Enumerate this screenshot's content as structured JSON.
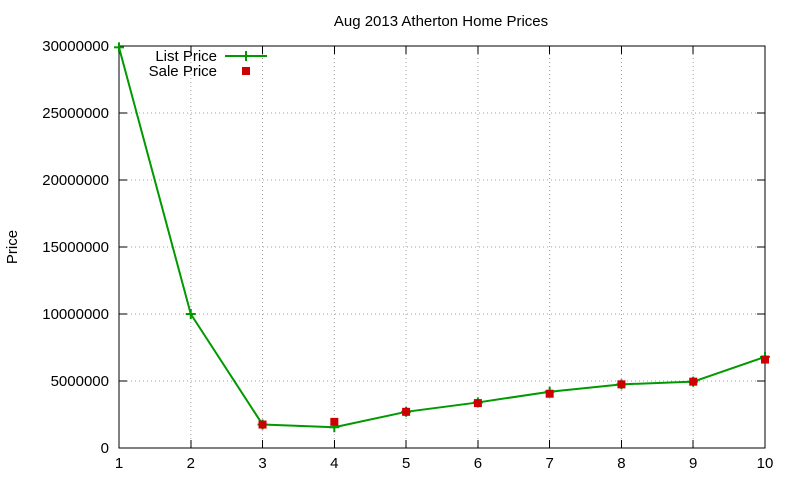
{
  "chart_data": {
    "type": "line",
    "title": "Aug 2013 Atherton Home Prices",
    "xlabel": "",
    "ylabel": "Price",
    "xlim": [
      1,
      10
    ],
    "ylim": [
      0,
      30000000
    ],
    "xticks": [
      "1",
      "2",
      "3",
      "4",
      "5",
      "6",
      "7",
      "8",
      "9",
      "10"
    ],
    "yticks": [
      "0",
      "5000000",
      "10000000",
      "15000000",
      "20000000",
      "25000000",
      "30000000"
    ],
    "grid": true,
    "legend_position": "top-left",
    "series": [
      {
        "name": "List Price",
        "style": "line-with-plus-markers",
        "color": "#009900",
        "x": [
          1,
          2,
          3,
          4,
          5,
          6,
          7,
          8,
          9,
          10
        ],
        "y": [
          29900000,
          10000000,
          1750000,
          1550000,
          2700000,
          3400000,
          4200000,
          4750000,
          4950000,
          6800000
        ]
      },
      {
        "name": "Sale Price",
        "style": "square-markers",
        "color": "#cc0000",
        "x": [
          3,
          4,
          5,
          6,
          7,
          8,
          9,
          10
        ],
        "y": [
          1750000,
          1950000,
          2700000,
          3350000,
          4050000,
          4750000,
          4950000,
          6600000
        ]
      }
    ]
  }
}
